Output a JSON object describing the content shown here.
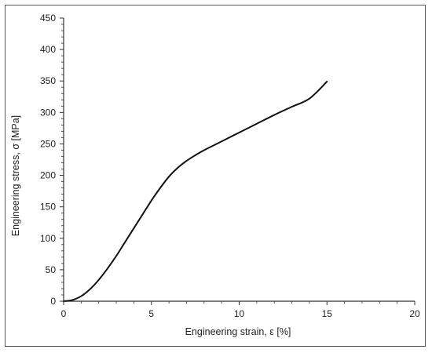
{
  "chart_data": {
    "type": "line",
    "title": "",
    "xlabel": "Engineering strain, ε [%]",
    "ylabel": "Engineering stress, σ [MPa]",
    "xlim": [
      0,
      20
    ],
    "ylim": [
      0,
      450
    ],
    "x_ticks": [
      "0",
      "5",
      "10",
      "15",
      "20"
    ],
    "y_ticks": [
      "0",
      "50",
      "100",
      "150",
      "200",
      "250",
      "300",
      "350",
      "400",
      "450"
    ],
    "grid": false,
    "legend": "none",
    "colors": {
      "line": "#111111",
      "axis": "#333333",
      "frame": "#555555"
    },
    "series": [
      {
        "x": [
          0,
          0.5,
          1.0,
          1.5,
          2.0,
          2.5,
          3.0,
          3.5,
          4.0,
          4.5,
          5.0,
          5.5,
          6.0,
          6.5,
          7.0,
          7.5,
          8.0,
          8.5,
          9.0,
          9.5,
          10.0,
          11.0,
          12.0,
          13.0,
          14.0,
          15.0
        ],
        "y": [
          0,
          2,
          8,
          19,
          34,
          52,
          72,
          94,
          116,
          138,
          160,
          180,
          198,
          212,
          223,
          232,
          240,
          247,
          254,
          261,
          268,
          282,
          296,
          309,
          322,
          349
        ]
      }
    ]
  }
}
